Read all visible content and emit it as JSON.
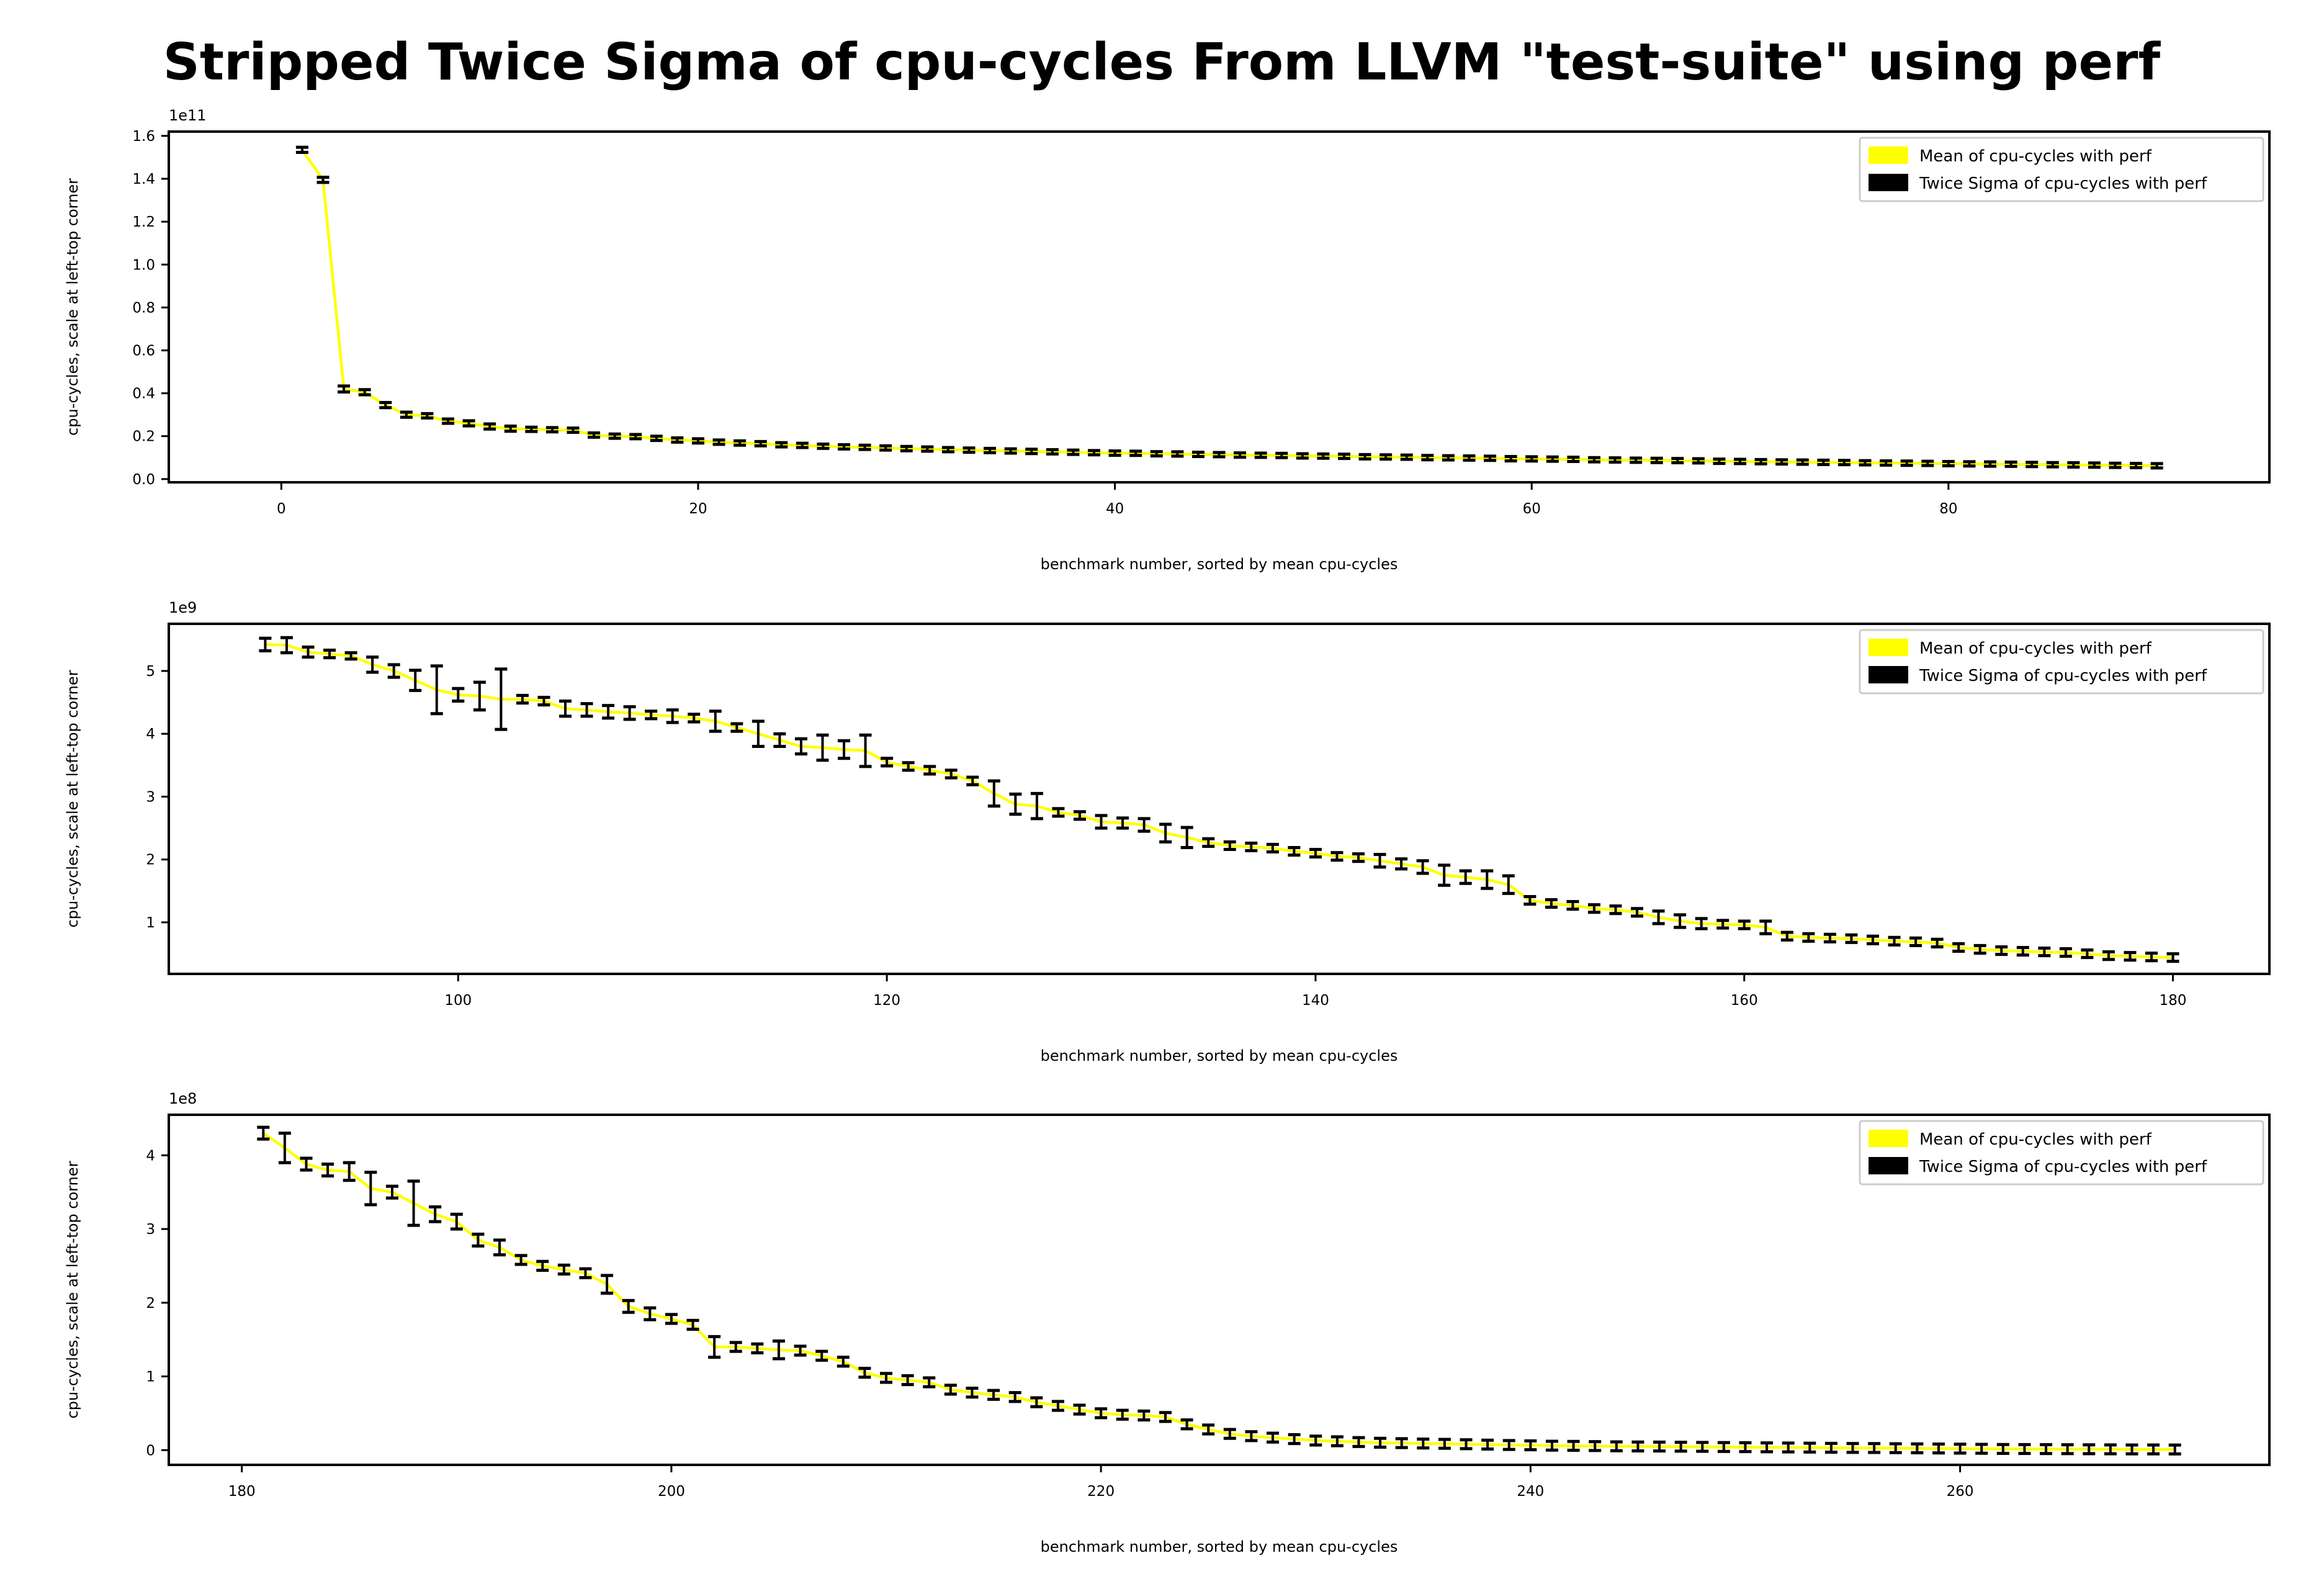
{
  "figure": {
    "title": "Stripped Twice Sigma of cpu-cycles From LLVM \"test-suite\" using perf"
  },
  "colors": {
    "mean": "#ffff00",
    "sigma": "#000000",
    "axes": "#000000"
  },
  "chart_data": [
    {
      "type": "line",
      "xlabel": "benchmark number, sorted by mean cpu-cycles",
      "ylabel": "cpu-cycles, scale at left-top corner",
      "scale_text": "1e11",
      "scale": 100000000000.0,
      "xlim": [
        -5.4,
        95.4
      ],
      "ylim": [
        -0.015,
        1.62
      ],
      "xticks": [
        0,
        20,
        40,
        60,
        80
      ],
      "yticks": [
        0.0,
        0.2,
        0.4,
        0.6,
        0.8,
        1.0,
        1.2,
        1.4,
        1.6
      ],
      "ytick_labels": [
        "0.0",
        "0.2",
        "0.4",
        "0.6",
        "0.8",
        "1.0",
        "1.2",
        "1.4",
        "1.6"
      ],
      "legend": [
        "Mean of cpu-cycles with perf",
        "Twice Sigma of cpu-cycles with perf"
      ],
      "legend_loc": "upper right",
      "x": [
        1,
        2,
        3,
        4,
        5,
        6,
        7,
        8,
        9,
        10,
        11,
        12,
        13,
        14,
        15,
        16,
        17,
        18,
        19,
        20,
        21,
        22,
        23,
        24,
        25,
        26,
        27,
        28,
        29,
        30,
        31,
        32,
        33,
        34,
        35,
        36,
        37,
        38,
        39,
        40,
        41,
        42,
        43,
        44,
        45,
        46,
        47,
        48,
        49,
        50,
        51,
        52,
        53,
        54,
        55,
        56,
        57,
        58,
        59,
        60,
        61,
        62,
        63,
        64,
        65,
        66,
        67,
        68,
        69,
        70,
        71,
        72,
        73,
        74,
        75,
        76,
        77,
        78,
        79,
        80,
        81,
        82,
        83,
        84,
        85,
        86,
        87,
        88,
        89,
        90
      ],
      "mean": [
        1.535,
        1.395,
        0.42,
        0.405,
        0.345,
        0.3,
        0.295,
        0.27,
        0.26,
        0.245,
        0.235,
        0.232,
        0.23,
        0.228,
        0.205,
        0.2,
        0.198,
        0.19,
        0.182,
        0.178,
        0.172,
        0.168,
        0.165,
        0.16,
        0.157,
        0.153,
        0.15,
        0.148,
        0.145,
        0.142,
        0.14,
        0.137,
        0.135,
        0.133,
        0.131,
        0.129,
        0.127,
        0.125,
        0.123,
        0.121,
        0.12,
        0.118,
        0.117,
        0.115,
        0.114,
        0.112,
        0.111,
        0.11,
        0.108,
        0.107,
        0.106,
        0.104,
        0.103,
        0.102,
        0.1,
        0.099,
        0.098,
        0.097,
        0.095,
        0.094,
        0.093,
        0.092,
        0.09,
        0.089,
        0.088,
        0.087,
        0.086,
        0.085,
        0.083,
        0.082,
        0.081,
        0.08,
        0.079,
        0.078,
        0.077,
        0.076,
        0.075,
        0.074,
        0.073,
        0.072,
        0.071,
        0.07,
        0.069,
        0.068,
        0.067,
        0.066,
        0.065,
        0.064,
        0.063,
        0.062
      ],
      "sigma2": [
        0.012,
        0.012,
        0.014,
        0.012,
        0.012,
        0.012,
        0.01,
        0.01,
        0.012,
        0.012,
        0.012,
        0.01,
        0.01,
        0.01,
        0.01,
        0.01,
        0.01,
        0.01,
        0.01,
        0.01,
        0.01,
        0.01,
        0.01,
        0.01,
        0.01,
        0.01,
        0.01,
        0.01,
        0.01,
        0.01,
        0.01,
        0.01,
        0.01,
        0.01,
        0.01,
        0.01,
        0.01,
        0.01,
        0.01,
        0.01,
        0.01,
        0.01,
        0.01,
        0.01,
        0.01,
        0.01,
        0.01,
        0.01,
        0.01,
        0.01,
        0.01,
        0.01,
        0.01,
        0.01,
        0.01,
        0.01,
        0.01,
        0.01,
        0.01,
        0.01,
        0.01,
        0.01,
        0.01,
        0.01,
        0.01,
        0.01,
        0.01,
        0.01,
        0.01,
        0.01,
        0.01,
        0.01,
        0.01,
        0.01,
        0.01,
        0.01,
        0.01,
        0.01,
        0.01,
        0.01,
        0.01,
        0.01,
        0.01,
        0.01,
        0.01,
        0.01,
        0.01,
        0.01,
        0.01,
        0.01
      ]
    },
    {
      "type": "line",
      "xlabel": "benchmark number, sorted by mean cpu-cycles",
      "ylabel": "cpu-cycles, scale at left-top corner",
      "scale_text": "1e9",
      "scale": 1000000000.0,
      "xlim": [
        86.5,
        184.5
      ],
      "ylim": [
        0.18,
        5.75
      ],
      "xticks": [
        100,
        120,
        140,
        160,
        180
      ],
      "yticks": [
        1,
        2,
        3,
        4,
        5
      ],
      "ytick_labels": [
        "1",
        "2",
        "3",
        "4",
        "5"
      ],
      "legend": [
        "Mean of cpu-cycles with perf",
        "Twice Sigma of cpu-cycles with perf"
      ],
      "legend_loc": "upper right",
      "x": [
        91,
        92,
        93,
        94,
        95,
        96,
        97,
        98,
        99,
        100,
        101,
        102,
        103,
        104,
        105,
        106,
        107,
        108,
        109,
        110,
        111,
        112,
        113,
        114,
        115,
        116,
        117,
        118,
        119,
        120,
        121,
        122,
        123,
        124,
        125,
        126,
        127,
        128,
        129,
        130,
        131,
        132,
        133,
        134,
        135,
        136,
        137,
        138,
        139,
        140,
        141,
        142,
        143,
        144,
        145,
        146,
        147,
        148,
        149,
        150,
        151,
        152,
        153,
        154,
        155,
        156,
        157,
        158,
        159,
        160,
        161,
        162,
        163,
        164,
        165,
        166,
        167,
        168,
        169,
        170,
        171,
        172,
        173,
        174,
        175,
        176,
        177,
        178,
        179,
        180
      ],
      "mean": [
        5.42,
        5.41,
        5.3,
        5.27,
        5.24,
        5.1,
        5.0,
        4.85,
        4.7,
        4.62,
        4.6,
        4.55,
        4.55,
        4.52,
        4.4,
        4.38,
        4.35,
        4.33,
        4.3,
        4.28,
        4.25,
        4.2,
        4.1,
        4.0,
        3.9,
        3.8,
        3.78,
        3.75,
        3.73,
        3.55,
        3.48,
        3.42,
        3.36,
        3.25,
        3.05,
        2.88,
        2.85,
        2.75,
        2.7,
        2.6,
        2.58,
        2.55,
        2.42,
        2.35,
        2.27,
        2.22,
        2.2,
        2.18,
        2.13,
        2.1,
        2.05,
        2.03,
        1.98,
        1.93,
        1.88,
        1.75,
        1.72,
        1.68,
        1.6,
        1.35,
        1.3,
        1.27,
        1.22,
        1.2,
        1.16,
        1.08,
        1.02,
        0.98,
        0.97,
        0.96,
        0.92,
        0.78,
        0.76,
        0.75,
        0.74,
        0.72,
        0.7,
        0.69,
        0.67,
        0.6,
        0.57,
        0.55,
        0.54,
        0.53,
        0.52,
        0.5,
        0.47,
        0.46,
        0.45,
        0.44
      ],
      "sigma2": [
        0.1,
        0.12,
        0.08,
        0.06,
        0.05,
        0.12,
        0.1,
        0.16,
        0.38,
        0.1,
        0.22,
        0.48,
        0.06,
        0.06,
        0.12,
        0.1,
        0.1,
        0.1,
        0.06,
        0.1,
        0.06,
        0.16,
        0.06,
        0.2,
        0.1,
        0.12,
        0.2,
        0.14,
        0.25,
        0.06,
        0.06,
        0.06,
        0.06,
        0.06,
        0.2,
        0.16,
        0.2,
        0.06,
        0.06,
        0.1,
        0.08,
        0.1,
        0.14,
        0.16,
        0.06,
        0.06,
        0.06,
        0.06,
        0.06,
        0.06,
        0.06,
        0.06,
        0.1,
        0.08,
        0.1,
        0.16,
        0.1,
        0.14,
        0.14,
        0.06,
        0.06,
        0.06,
        0.06,
        0.06,
        0.06,
        0.1,
        0.1,
        0.08,
        0.06,
        0.06,
        0.1,
        0.06,
        0.06,
        0.06,
        0.06,
        0.06,
        0.06,
        0.06,
        0.06,
        0.06,
        0.06,
        0.06,
        0.06,
        0.06,
        0.06,
        0.06,
        0.06,
        0.06,
        0.06,
        0.06
      ]
    },
    {
      "type": "line",
      "xlabel": "benchmark number, sorted by mean cpu-cycles",
      "ylabel": "cpu-cycles, scale at left-top corner",
      "scale_text": "1e8",
      "scale": 100000000.0,
      "xlim": [
        176.6,
        274.4
      ],
      "ylim": [
        -0.2,
        4.55
      ],
      "xticks": [
        180,
        200,
        220,
        240,
        260
      ],
      "yticks": [
        0,
        1,
        2,
        3,
        4
      ],
      "ytick_labels": [
        "0",
        "1",
        "2",
        "3",
        "4"
      ],
      "legend": [
        "Mean of cpu-cycles with perf",
        "Twice Sigma of cpu-cycles with perf"
      ],
      "legend_loc": "upper right",
      "x": [
        181,
        182,
        183,
        184,
        185,
        186,
        187,
        188,
        189,
        190,
        191,
        192,
        193,
        194,
        195,
        196,
        197,
        198,
        199,
        200,
        201,
        202,
        203,
        204,
        205,
        206,
        207,
        208,
        209,
        210,
        211,
        212,
        213,
        214,
        215,
        216,
        217,
        218,
        219,
        220,
        221,
        222,
        223,
        224,
        225,
        226,
        227,
        228,
        229,
        230,
        231,
        232,
        233,
        234,
        235,
        236,
        237,
        238,
        239,
        240,
        241,
        242,
        243,
        244,
        245,
        246,
        247,
        248,
        249,
        250,
        251,
        252,
        253,
        254,
        255,
        256,
        257,
        258,
        259,
        260,
        261,
        262,
        263,
        264,
        265,
        266,
        267,
        268,
        269,
        270
      ],
      "mean": [
        4.3,
        4.1,
        3.88,
        3.8,
        3.78,
        3.55,
        3.5,
        3.35,
        3.2,
        3.1,
        2.85,
        2.75,
        2.58,
        2.5,
        2.45,
        2.4,
        2.25,
        1.95,
        1.85,
        1.78,
        1.7,
        1.4,
        1.4,
        1.38,
        1.36,
        1.35,
        1.28,
        1.2,
        1.05,
        0.98,
        0.95,
        0.92,
        0.82,
        0.78,
        0.75,
        0.72,
        0.65,
        0.6,
        0.55,
        0.5,
        0.48,
        0.47,
        0.45,
        0.35,
        0.28,
        0.22,
        0.19,
        0.17,
        0.15,
        0.13,
        0.12,
        0.11,
        0.1,
        0.095,
        0.09,
        0.085,
        0.08,
        0.075,
        0.07,
        0.065,
        0.06,
        0.058,
        0.055,
        0.052,
        0.05,
        0.048,
        0.046,
        0.044,
        0.042,
        0.04,
        0.038,
        0.036,
        0.034,
        0.032,
        0.03,
        0.028,
        0.026,
        0.024,
        0.022,
        0.02,
        0.018,
        0.016,
        0.015,
        0.014,
        0.013,
        0.012,
        0.011,
        0.01,
        0.009,
        0.008
      ],
      "sigma2": [
        0.08,
        0.2,
        0.08,
        0.08,
        0.12,
        0.22,
        0.08,
        0.3,
        0.1,
        0.1,
        0.08,
        0.1,
        0.06,
        0.06,
        0.06,
        0.06,
        0.12,
        0.08,
        0.08,
        0.06,
        0.06,
        0.14,
        0.06,
        0.06,
        0.12,
        0.06,
        0.06,
        0.06,
        0.06,
        0.06,
        0.06,
        0.06,
        0.06,
        0.06,
        0.06,
        0.06,
        0.06,
        0.06,
        0.06,
        0.06,
        0.06,
        0.06,
        0.06,
        0.06,
        0.06,
        0.06,
        0.06,
        0.06,
        0.06,
        0.06,
        0.06,
        0.06,
        0.06,
        0.06,
        0.06,
        0.06,
        0.06,
        0.06,
        0.06,
        0.06,
        0.06,
        0.06,
        0.06,
        0.06,
        0.06,
        0.06,
        0.06,
        0.06,
        0.06,
        0.06,
        0.06,
        0.06,
        0.06,
        0.06,
        0.06,
        0.06,
        0.06,
        0.06,
        0.06,
        0.06,
        0.06,
        0.06,
        0.06,
        0.06,
        0.06,
        0.06,
        0.06,
        0.06,
        0.06,
        0.06
      ]
    }
  ]
}
